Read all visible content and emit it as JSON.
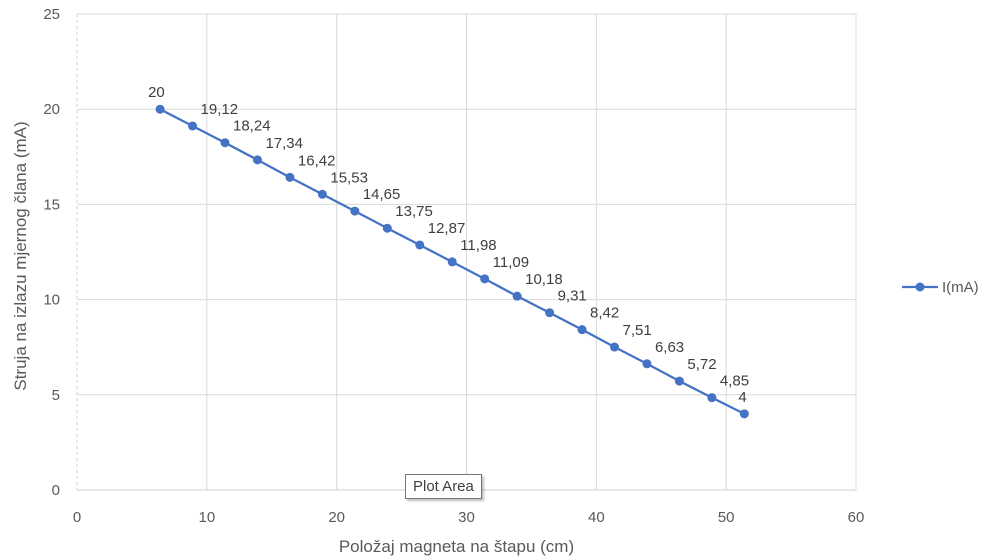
{
  "chart_data": {
    "type": "line",
    "title": "",
    "xlabel": "Položaj magneta na štapu (cm)",
    "ylabel": "Struja na izlazu mjernog člana (mA)",
    "xlim": [
      0,
      60
    ],
    "ylim": [
      0,
      25
    ],
    "x_ticks": [
      "0",
      "10",
      "20",
      "30",
      "40",
      "50",
      "60"
    ],
    "y_ticks": [
      "0",
      "5",
      "10",
      "15",
      "20",
      "25"
    ],
    "grid": true,
    "legend_position": "right",
    "series": [
      {
        "name": "I(mA)",
        "color": "#4472C4",
        "x": [
          6.4,
          8.9,
          11.4,
          13.9,
          16.4,
          18.9,
          21.4,
          23.9,
          26.4,
          28.9,
          31.4,
          33.9,
          36.4,
          38.9,
          41.4,
          43.9,
          46.4,
          48.9,
          51.4
        ],
        "values": [
          20,
          19.12,
          18.24,
          17.34,
          16.42,
          15.53,
          14.65,
          13.75,
          12.87,
          11.98,
          11.09,
          10.18,
          9.31,
          8.42,
          7.51,
          6.63,
          5.72,
          4.85,
          4
        ],
        "labels": [
          "20",
          "19,12",
          "18,24",
          "17,34",
          "16,42",
          "15,53",
          "14,65",
          "13,75",
          "12,87",
          "11,98",
          "11,09",
          "10,18",
          "9,31",
          "8,42",
          "7,51",
          "6,63",
          "5,72",
          "4,85",
          "4"
        ]
      }
    ]
  },
  "tooltip": {
    "text": "Plot Area"
  }
}
